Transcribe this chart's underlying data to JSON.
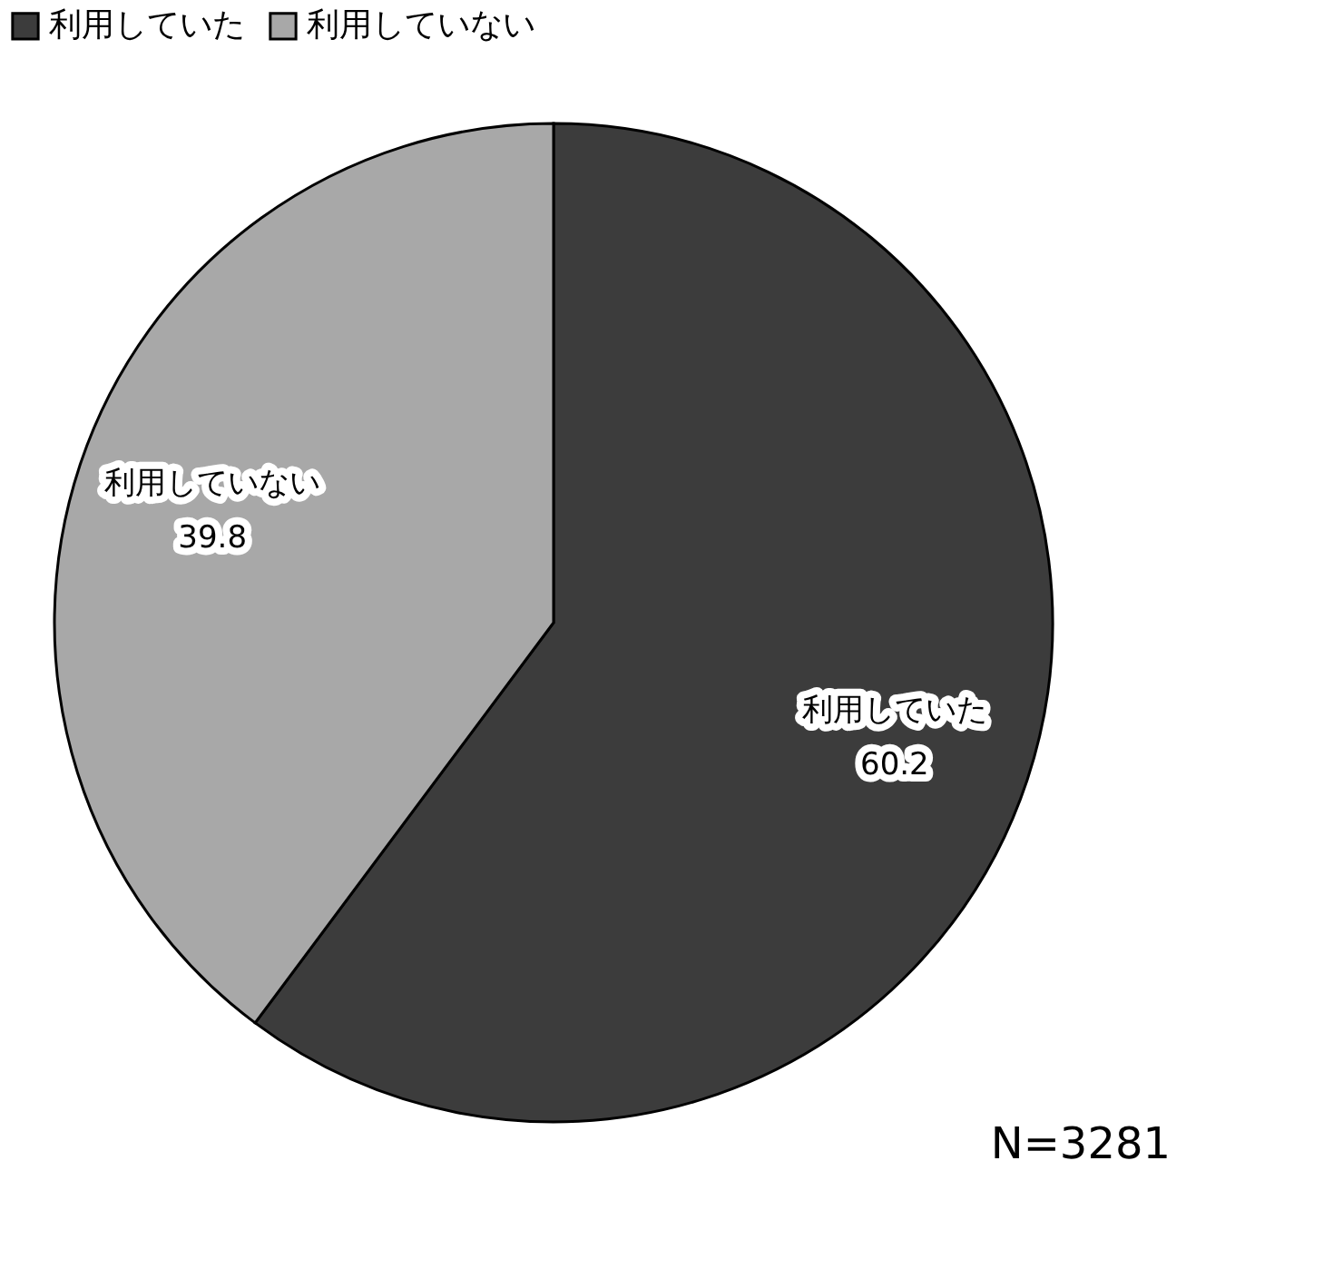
{
  "chart_data": {
    "type": "pie",
    "categories": [
      "利用していた",
      "利用していない"
    ],
    "values": [
      60.2,
      39.8
    ],
    "colors": [
      "#3c3c3c",
      "#a8a8a8"
    ],
    "data_labels": true,
    "legend": "top",
    "annotations": [
      "N=3281"
    ]
  }
}
